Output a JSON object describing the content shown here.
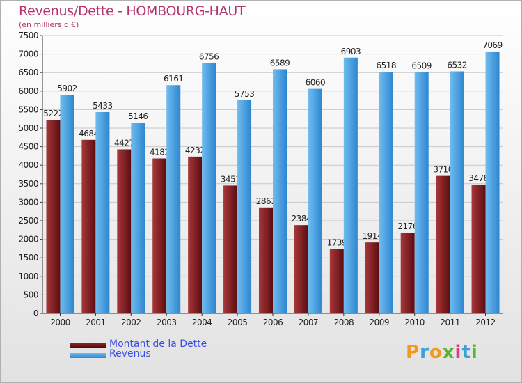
{
  "chart_data": {
    "type": "bar",
    "title": "Revenus/Dette - HOMBOURG-HAUT",
    "subtitle": "(en milliers d'€)",
    "categories": [
      "2000",
      "2001",
      "2002",
      "2003",
      "2004",
      "2005",
      "2006",
      "2007",
      "2008",
      "2009",
      "2010",
      "2011",
      "2012"
    ],
    "series": [
      {
        "name": "Montant de la Dette",
        "color": "#7a1a1c",
        "values": [
          5222,
          4684,
          4427,
          4182,
          4232,
          3451,
          2861,
          2384,
          1739,
          1914,
          2176,
          3710,
          3478
        ],
        "labels": [
          "5222",
          "4684",
          "4427",
          "4182",
          "4232",
          "3451",
          "2861",
          "2384",
          "1739",
          "1914",
          "2176",
          "3710",
          "3478"
        ]
      },
      {
        "name": "Revenus",
        "color": "#4aa3e6",
        "values": [
          5902,
          5433,
          5146,
          6161,
          6756,
          5753,
          6589,
          6060,
          6903,
          6518,
          6509,
          6532,
          7069
        ],
        "labels": [
          "5902",
          "5433",
          "5146",
          "6161",
          "6756",
          "5753",
          "6589",
          "6060",
          "6903",
          "6518",
          "6509",
          "6532",
          "7069"
        ]
      }
    ],
    "ylim": [
      0,
      7500
    ],
    "yticks": [
      0,
      500,
      1000,
      1500,
      2000,
      2500,
      3000,
      3500,
      4000,
      4500,
      5000,
      5500,
      6000,
      6500,
      7000,
      7500
    ],
    "grid": true,
    "legend_position": "bottom-left"
  },
  "brand": {
    "text": "Proxiti",
    "letters": [
      "P",
      "r",
      "o",
      "x",
      "i",
      "t",
      "i"
    ],
    "colors": [
      "#f39a1c",
      "#3aa0d8",
      "#f39a1c",
      "#5bb431",
      "#d83a8c",
      "#3aa0d8",
      "#5bb431"
    ]
  }
}
